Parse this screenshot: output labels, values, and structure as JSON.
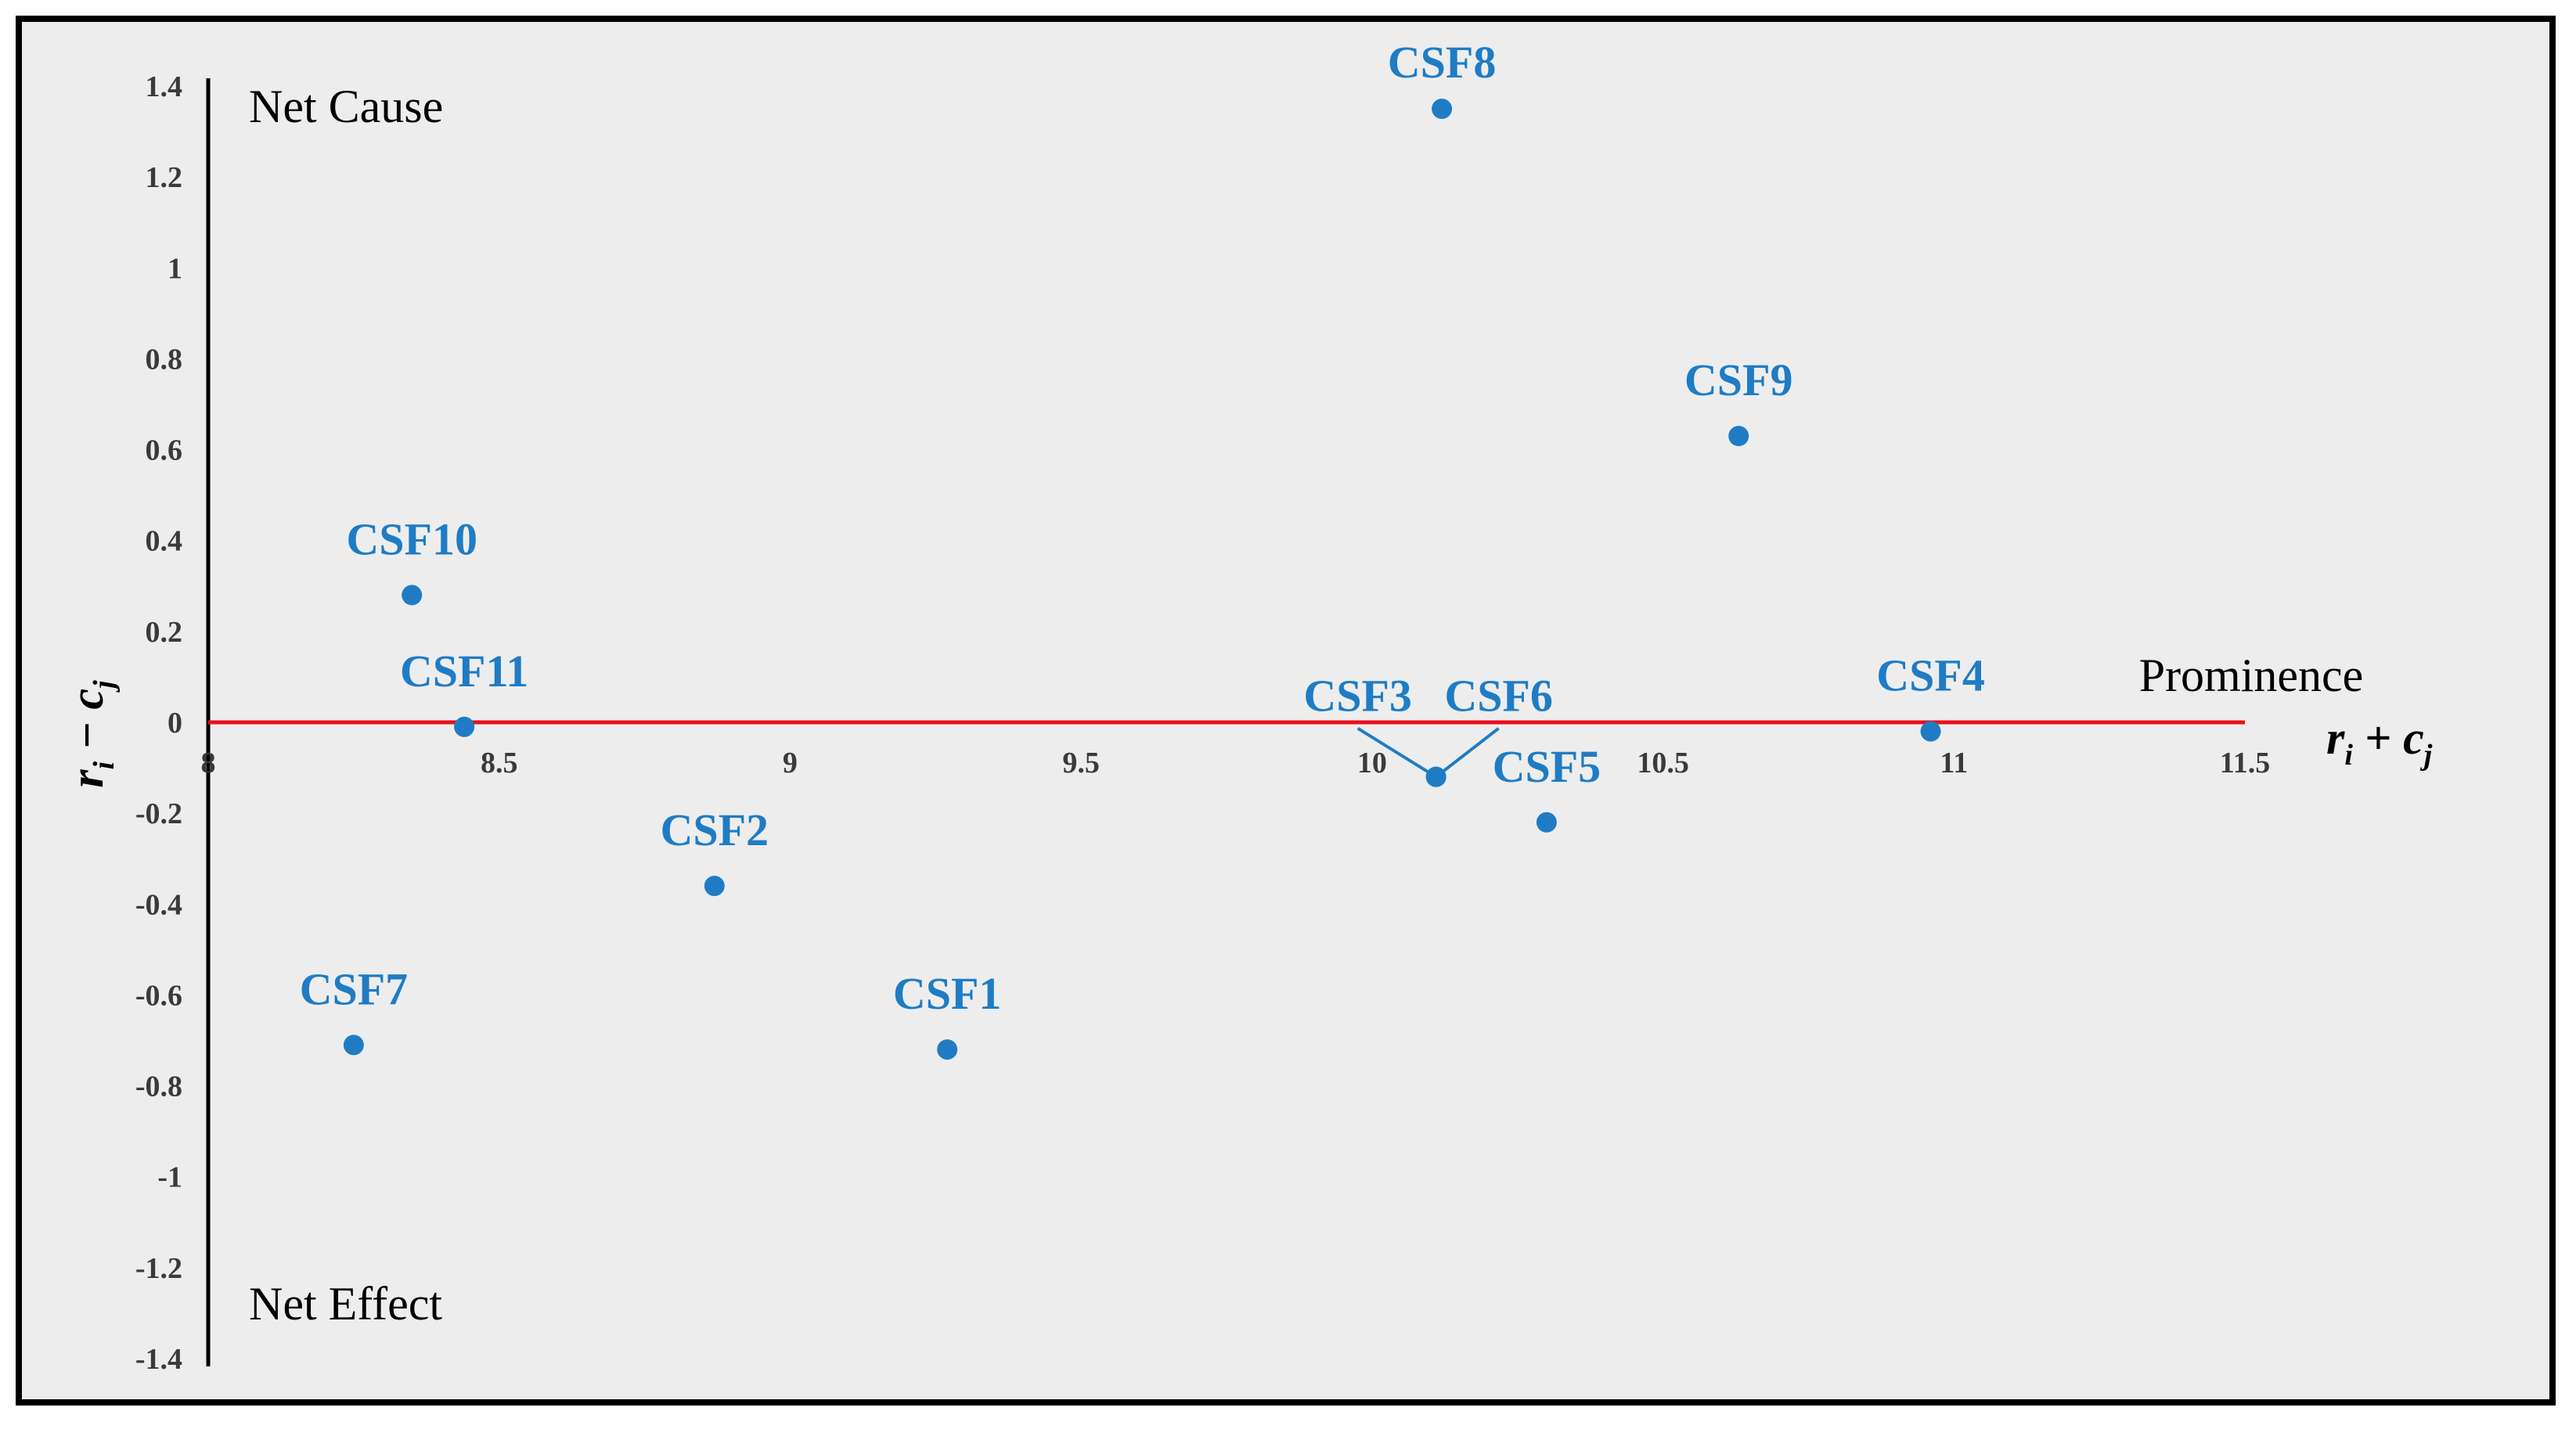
{
  "chart_data": {
    "type": "scatter",
    "xlabel": "Prominence",
    "xlabel_formula": "r_i + c_j",
    "ylabel_formula": "r_i − c_j",
    "xlim": [
      8,
      11.5
    ],
    "ylim": [
      -1.4,
      1.4
    ],
    "x_ticks": [
      "8",
      "8.5",
      "9",
      "9.5",
      "10",
      "10.5",
      "11",
      "11.5"
    ],
    "y_ticks": [
      "1.4",
      "1.2",
      "1",
      "0.8",
      "0.6",
      "0.4",
      "0.2",
      "0",
      "-0.2",
      "-0.4",
      "-0.6",
      "-0.8",
      "-1",
      "-1.2",
      "-1.4"
    ],
    "quadrant_labels": {
      "top": "Net Cause",
      "bottom": "Net Effect"
    },
    "grid": false,
    "axis_colors": {
      "x_axis": "#e8101a",
      "y_axis": "#000000"
    },
    "marker_color": "#1f7cc4",
    "points": [
      {
        "label": "CSF1",
        "x": 9.27,
        "y": -0.72
      },
      {
        "label": "CSF2",
        "x": 8.87,
        "y": -0.36
      },
      {
        "label": "CSF3",
        "x": 10.11,
        "y": -0.12
      },
      {
        "label": "CSF4",
        "x": 10.96,
        "y": -0.02
      },
      {
        "label": "CSF5",
        "x": 10.3,
        "y": -0.22
      },
      {
        "label": "CSF6",
        "x": 10.11,
        "y": -0.12
      },
      {
        "label": "CSF7",
        "x": 8.25,
        "y": -0.71
      },
      {
        "label": "CSF8",
        "x": 10.12,
        "y": 1.35
      },
      {
        "label": "CSF9",
        "x": 10.63,
        "y": 0.63
      },
      {
        "label": "CSF10",
        "x": 8.35,
        "y": 0.28
      },
      {
        "label": "CSF11",
        "x": 8.44,
        "y": -0.01
      }
    ]
  }
}
